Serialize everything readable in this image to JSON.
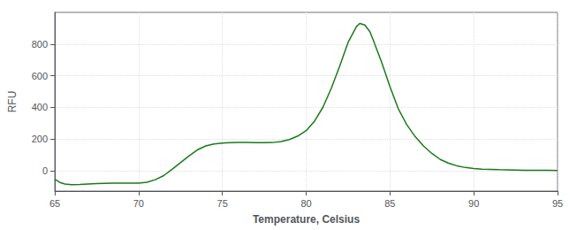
{
  "chart_data": {
    "type": "line",
    "xlabel": "Temperature, Celsius",
    "ylabel": "RFU",
    "color": "#1a7a1a",
    "grid": true,
    "xlim": [
      65,
      95
    ],
    "ylim": [
      -130,
      1000
    ],
    "xticks": [
      65,
      70,
      75,
      80,
      85,
      90,
      95
    ],
    "yticks": [
      0,
      200,
      400,
      600,
      800
    ],
    "x": [
      65.0,
      65.3,
      65.6,
      66.0,
      66.5,
      67.0,
      67.5,
      68.0,
      68.5,
      69.0,
      69.5,
      70.0,
      70.5,
      71.0,
      71.5,
      72.0,
      72.5,
      73.0,
      73.5,
      74.0,
      74.5,
      75.0,
      75.5,
      76.0,
      76.5,
      77.0,
      77.5,
      78.0,
      78.5,
      79.0,
      79.5,
      80.0,
      80.5,
      81.0,
      81.5,
      82.0,
      82.5,
      83.0,
      83.2,
      83.5,
      83.8,
      84.0,
      84.5,
      85.0,
      85.5,
      85.8,
      86.0,
      86.5,
      87.0,
      87.5,
      88.0,
      88.5,
      89.0,
      89.5,
      90.0,
      90.5,
      91.0,
      91.5,
      92.0,
      92.5,
      93.0,
      93.5,
      94.0,
      94.5,
      95.0
    ],
    "values": [
      -55,
      -75,
      -85,
      -90,
      -88,
      -85,
      -83,
      -81,
      -80,
      -80,
      -80,
      -80,
      -74,
      -58,
      -32,
      8,
      50,
      92,
      130,
      155,
      168,
      174,
      176,
      177,
      177,
      176,
      176,
      177,
      183,
      196,
      218,
      252,
      312,
      400,
      520,
      660,
      810,
      910,
      930,
      920,
      878,
      825,
      685,
      530,
      390,
      330,
      290,
      215,
      155,
      108,
      70,
      46,
      30,
      19,
      13,
      9,
      7,
      5,
      4,
      3,
      2,
      2,
      1,
      1,
      0
    ]
  }
}
